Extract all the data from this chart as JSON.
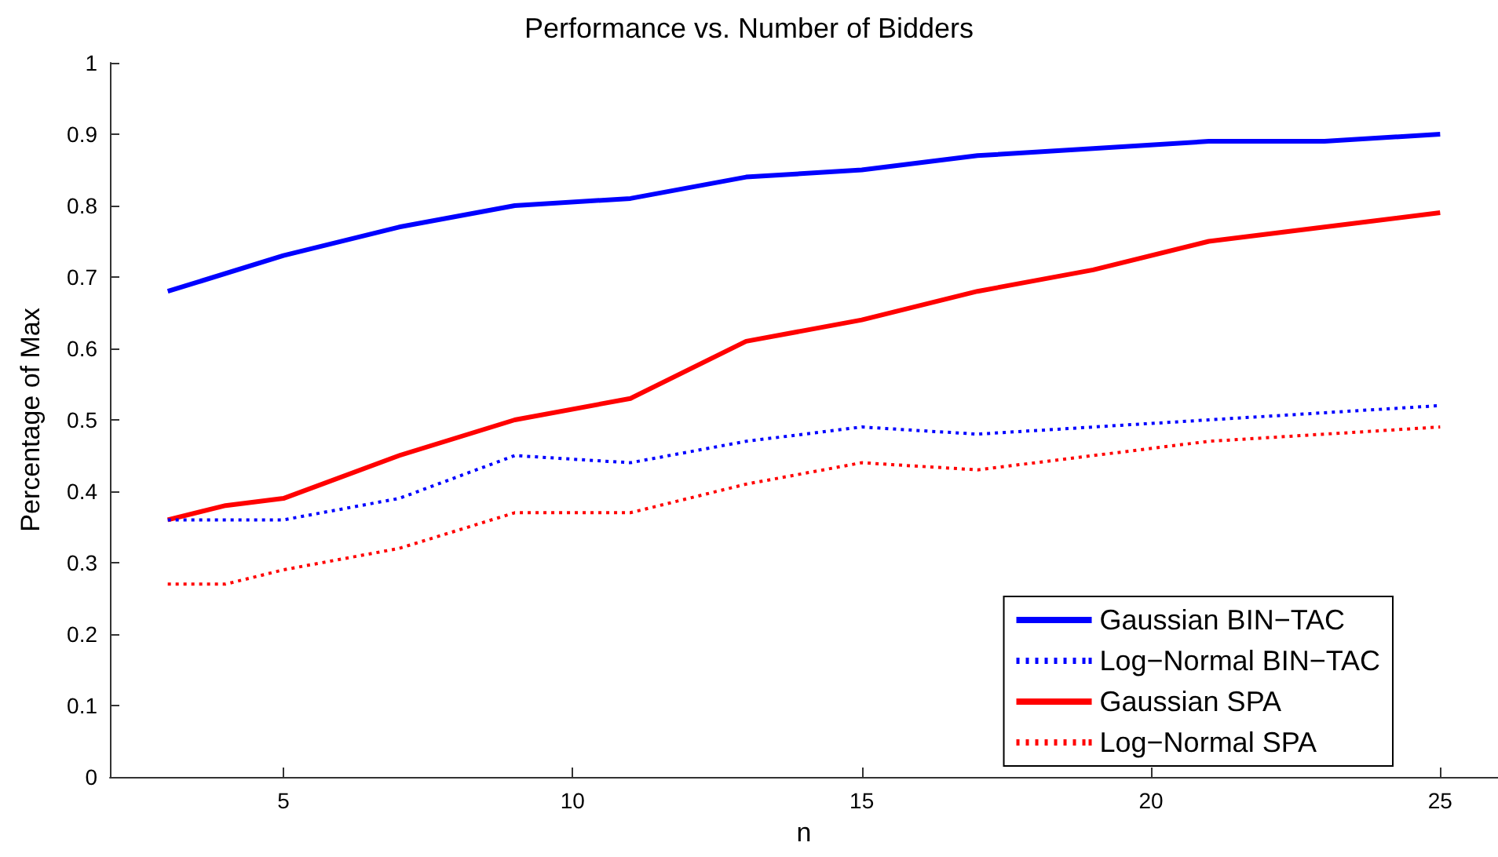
{
  "chart_data": {
    "type": "line",
    "title": "Performance vs. Number of Bidders",
    "xlabel": "n",
    "ylabel": "Percentage of Max",
    "x": [
      3,
      4,
      5,
      7,
      9,
      11,
      13,
      15,
      17,
      19,
      21,
      23,
      25
    ],
    "series": [
      {
        "name": "Gaussian BIN−TAC",
        "color": "#0000ff",
        "line_style": "solid",
        "x": [
          3,
          5,
          7,
          9,
          11,
          13,
          15,
          17,
          19,
          21,
          23,
          25
        ],
        "values": [
          0.68,
          0.73,
          0.77,
          0.8,
          0.81,
          0.84,
          0.85,
          0.87,
          0.88,
          0.89,
          0.89,
          0.9
        ]
      },
      {
        "name": "Log−Normal BIN−TAC",
        "color": "#0000ff",
        "line_style": "dotted",
        "x": [
          3,
          5,
          7,
          9,
          11,
          13,
          15,
          17,
          19,
          21,
          23,
          25
        ],
        "values": [
          0.36,
          0.36,
          0.39,
          0.45,
          0.44,
          0.47,
          0.49,
          0.48,
          0.49,
          0.5,
          0.51,
          0.52
        ]
      },
      {
        "name": "Gaussian SPA",
        "color": "#ff0000",
        "line_style": "solid",
        "values": [
          0.36,
          0.38,
          0.39,
          0.45,
          0.5,
          0.53,
          0.61,
          0.64,
          0.68,
          0.71,
          0.75,
          0.77,
          0.79
        ]
      },
      {
        "name": "Log−Normal SPA",
        "color": "#ff0000",
        "line_style": "dotted",
        "values": [
          0.27,
          0.27,
          0.29,
          0.32,
          0.37,
          0.37,
          0.41,
          0.44,
          0.43,
          0.45,
          0.47,
          0.48,
          0.49
        ]
      }
    ],
    "xlim": [
      2,
      26
    ],
    "xticks": [
      5,
      10,
      15,
      20,
      25
    ],
    "ylim": [
      0,
      1
    ],
    "yticks": [
      0,
      0.1,
      0.2,
      0.3,
      0.4,
      0.5,
      0.6,
      0.7,
      0.8,
      0.9,
      1
    ],
    "grid": false,
    "legend": "bottom right",
    "marker": "none"
  }
}
